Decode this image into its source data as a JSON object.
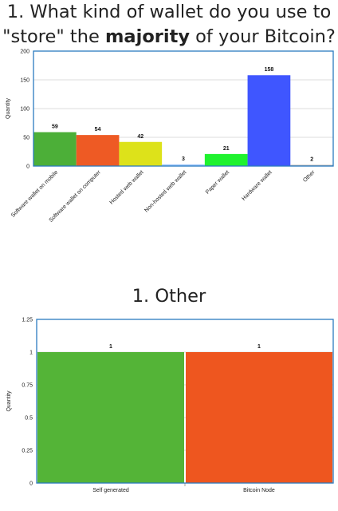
{
  "charts": [
    {
      "title_pre": "1. What kind of wallet do you use to",
      "title_line2_pre": "\"store\" the ",
      "title_bold": "majority",
      "title_line2_post": " of your Bitcoin?"
    },
    {
      "title": "1. Other"
    }
  ],
  "chart_data": [
    {
      "type": "bar",
      "ylabel": "Quantity",
      "ylim": [
        0,
        200
      ],
      "yticks": [
        0,
        50,
        100,
        150,
        200
      ],
      "grid": true,
      "categories": [
        "Software wallet on mobile",
        "Software wallet on computer",
        "Hosted web wallet",
        "Non-hosted web wallet",
        "Paper wallet",
        "Hardware wallet",
        "Other"
      ],
      "values": [
        59,
        54,
        42,
        3,
        21,
        158,
        2
      ],
      "data_labels": [
        "59",
        "54",
        "42",
        "3",
        "21",
        "158",
        "2"
      ],
      "colors": [
        "#4caf38",
        "#ee5a24",
        "#dde21a",
        "#9ec8ff",
        "#1ff22f",
        "#3f56ff",
        "#aaaaaa"
      ]
    },
    {
      "type": "bar",
      "ylabel": "Quantity",
      "ylim": [
        0,
        1.25
      ],
      "yticks": [
        "0",
        "0.25",
        "0.5",
        "0.75",
        "1",
        "1.25"
      ],
      "grid": true,
      "categories": [
        "Self generated",
        "Bitcoin Node"
      ],
      "values": [
        1,
        1
      ],
      "data_labels": [
        "1",
        "1"
      ],
      "colors": [
        "#54b437",
        "#ee561f"
      ]
    }
  ],
  "frame_color": "#2b7bbf"
}
